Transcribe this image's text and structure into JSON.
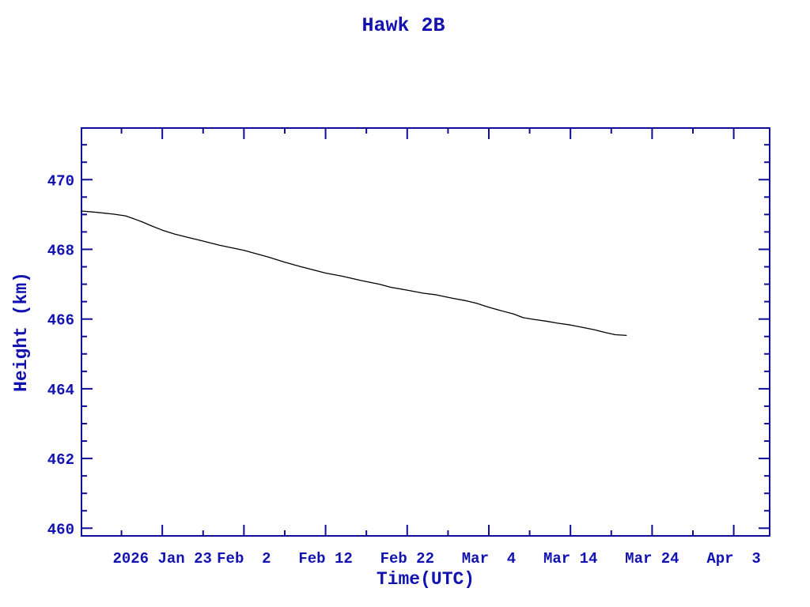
{
  "page": {
    "background": "#ffffff"
  },
  "chart_data": {
    "type": "line",
    "title": "Hawk 2B",
    "xlabel": "Time(UTC)",
    "ylabel": "Height (km)",
    "grid": false,
    "legend": null,
    "colors": {
      "axis": "#0d0d96",
      "text": "#1212b0",
      "line": "#000000",
      "background": "#ffffff"
    },
    "x_unit": "day-of-year 2026",
    "xlim": [
      13.1,
      97.4
    ],
    "ylim": [
      459.78,
      471.48
    ],
    "x_major_ticks": [
      {
        "day": 23,
        "label": "2026 Jan 23"
      },
      {
        "day": 33,
        "label": "Feb  2"
      },
      {
        "day": 43,
        "label": "Feb 12"
      },
      {
        "day": 53,
        "label": "Feb 22"
      },
      {
        "day": 63,
        "label": "Mar  4"
      },
      {
        "day": 73,
        "label": "Mar 14"
      },
      {
        "day": 83,
        "label": "Mar 24"
      },
      {
        "day": 93,
        "label": "Apr  3"
      }
    ],
    "x_minor_ticks": [
      18,
      28,
      38,
      48,
      58,
      68,
      78,
      88
    ],
    "y_major_ticks": [
      {
        "value": 460,
        "label": "460"
      },
      {
        "value": 462,
        "label": "462"
      },
      {
        "value": 464,
        "label": "464"
      },
      {
        "value": 466,
        "label": "466"
      },
      {
        "value": 468,
        "label": "468"
      },
      {
        "value": 470,
        "label": "470"
      }
    ],
    "y_minor_ticks": [
      460.5,
      461,
      461.5,
      462.5,
      463,
      463.5,
      464.5,
      465,
      465.5,
      466.5,
      467,
      467.5,
      468.5,
      469,
      469.5,
      470.5,
      471
    ],
    "series": [
      {
        "name": "orbit-height",
        "color": "#000000",
        "points": [
          [
            13.1,
            469.1
          ],
          [
            15.0,
            469.06
          ],
          [
            17.0,
            469.01
          ],
          [
            18.5,
            468.96
          ],
          [
            19.5,
            468.88
          ],
          [
            20.5,
            468.79
          ],
          [
            21.7,
            468.67
          ],
          [
            23.0,
            468.55
          ],
          [
            24.5,
            468.44
          ],
          [
            26.0,
            468.35
          ],
          [
            27.8,
            468.25
          ],
          [
            30.0,
            468.12
          ],
          [
            33.0,
            467.97
          ],
          [
            36.0,
            467.78
          ],
          [
            38.0,
            467.63
          ],
          [
            40.0,
            467.5
          ],
          [
            43.0,
            467.32
          ],
          [
            45.0,
            467.23
          ],
          [
            47.5,
            467.1
          ],
          [
            49.6,
            467.0
          ],
          [
            51.0,
            466.91
          ],
          [
            53.0,
            466.83
          ],
          [
            55.0,
            466.74
          ],
          [
            56.4,
            466.7
          ],
          [
            58.5,
            466.6
          ],
          [
            60.3,
            466.52
          ],
          [
            61.5,
            466.45
          ],
          [
            63.0,
            466.34
          ],
          [
            64.5,
            466.24
          ],
          [
            66.0,
            466.15
          ],
          [
            67.2,
            466.04
          ],
          [
            68.5,
            465.99
          ],
          [
            70.0,
            465.94
          ],
          [
            71.5,
            465.88
          ],
          [
            73.0,
            465.83
          ],
          [
            74.5,
            465.76
          ],
          [
            76.0,
            465.69
          ],
          [
            77.5,
            465.6
          ],
          [
            78.5,
            465.55
          ],
          [
            79.9,
            465.53
          ]
        ]
      }
    ]
  }
}
